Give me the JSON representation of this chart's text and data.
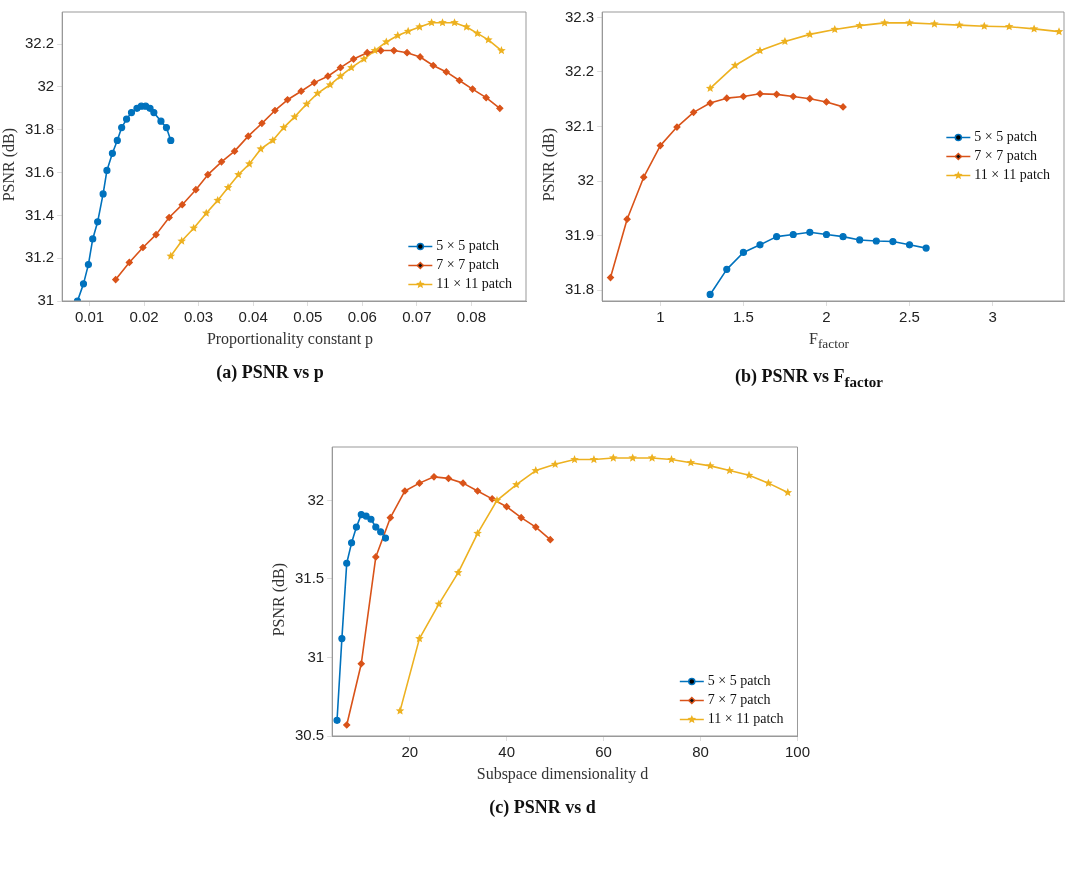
{
  "chart_data": [
    {
      "type": "line",
      "title": "(a) PSNR vs p",
      "xlabel": "Proportionality constant p",
      "ylabel": "PSNR (dB)",
      "xlim": [
        0.005,
        0.09
      ],
      "ylim": [
        31,
        32.35
      ],
      "xticks": [
        0.01,
        0.02,
        0.03,
        0.04,
        0.05,
        0.06,
        0.07,
        0.08
      ],
      "yticks": [
        31,
        31.2,
        31.4,
        31.6,
        31.8,
        32,
        32.2
      ],
      "legend": "bottom right",
      "series": [
        {
          "name": "5 × 5 patch",
          "color": "#0072bd",
          "marker": "circle",
          "x": [
            0.0078,
            0.0089,
            0.0098,
            0.0106,
            0.0115,
            0.0125,
            0.0132,
            0.0142,
            0.0151,
            0.0159,
            0.0168,
            0.0177,
            0.0187,
            0.0195,
            0.0203,
            0.0211,
            0.0218,
            0.0231,
            0.0241,
            0.0249
          ],
          "values": [
            31.0,
            31.08,
            31.17,
            31.29,
            31.37,
            31.5,
            31.61,
            31.69,
            31.75,
            31.81,
            31.85,
            31.88,
            31.9,
            31.91,
            31.91,
            31.9,
            31.88,
            31.84,
            31.81,
            31.75
          ]
        },
        {
          "name": "7 × 7 patch",
          "color": "#d95319",
          "marker": "diamond",
          "x": [
            0.0148,
            0.0173,
            0.0198,
            0.0222,
            0.0246,
            0.027,
            0.0295,
            0.0317,
            0.0342,
            0.0366,
            0.0391,
            0.0416,
            0.044,
            0.0463,
            0.0488,
            0.0512,
            0.0537,
            0.056,
            0.0584,
            0.0609,
            0.0634,
            0.0658,
            0.0682,
            0.0706,
            0.073,
            0.0754,
            0.0778,
            0.0802,
            0.0827,
            0.0852
          ],
          "values": [
            31.1,
            31.18,
            31.25,
            31.31,
            31.39,
            31.45,
            31.52,
            31.59,
            31.65,
            31.7,
            31.77,
            31.83,
            31.89,
            31.94,
            31.98,
            32.02,
            32.05,
            32.09,
            32.13,
            32.16,
            32.17,
            32.17,
            32.16,
            32.14,
            32.1,
            32.07,
            32.03,
            31.99,
            31.95,
            31.9
          ]
        },
        {
          "name": "11 × 11 patch",
          "color": "#edb120",
          "marker": "star",
          "x": [
            0.0249,
            0.0269,
            0.0291,
            0.0314,
            0.0335,
            0.0354,
            0.0373,
            0.0393,
            0.0414,
            0.0436,
            0.0456,
            0.0476,
            0.0498,
            0.0518,
            0.0541,
            0.056,
            0.058,
            0.0603,
            0.0623,
            0.0644,
            0.0665,
            0.0684,
            0.0705,
            0.0727,
            0.0747,
            0.0769,
            0.0791,
            0.0811,
            0.0831,
            0.0855
          ],
          "values": [
            31.21,
            31.28,
            31.34,
            31.41,
            31.47,
            31.53,
            31.59,
            31.64,
            31.71,
            31.75,
            31.81,
            31.86,
            31.92,
            31.97,
            32.01,
            32.05,
            32.09,
            32.13,
            32.17,
            32.21,
            32.24,
            32.26,
            32.28,
            32.3,
            32.3,
            32.3,
            32.28,
            32.25,
            32.22,
            32.17
          ]
        }
      ]
    },
    {
      "type": "line",
      "title": "(b) PSNR vs F$_{factor}$",
      "xlabel": "F$_{factor}$",
      "ylabel": "PSNR (dB)",
      "xlim": [
        0.65,
        3.43
      ],
      "ylim": [
        31.78,
        32.31
      ],
      "xticks": [
        1,
        1.5,
        2,
        2.5,
        3
      ],
      "yticks": [
        31.8,
        31.9,
        32,
        32.1,
        32.2,
        32.3
      ],
      "legend": "right",
      "series": [
        {
          "name": "5 × 5 patch",
          "color": "#0072bd",
          "marker": "circle",
          "x": [
            1.3,
            1.4,
            1.5,
            1.6,
            1.7,
            1.8,
            1.9,
            2.0,
            2.1,
            2.2,
            2.3,
            2.4,
            2.5,
            2.6
          ],
          "values": [
            31.792,
            31.838,
            31.869,
            31.883,
            31.898,
            31.902,
            31.906,
            31.902,
            31.898,
            31.892,
            31.89,
            31.889,
            31.883,
            31.877
          ]
        },
        {
          "name": "7 × 7 patch",
          "color": "#d95319",
          "marker": "diamond",
          "x": [
            0.7,
            0.8,
            0.9,
            1.0,
            1.1,
            1.2,
            1.3,
            1.4,
            1.5,
            1.6,
            1.7,
            1.8,
            1.9,
            2.0,
            2.1
          ],
          "values": [
            31.823,
            31.93,
            32.007,
            32.065,
            32.099,
            32.126,
            32.143,
            32.152,
            32.155,
            32.16,
            32.159,
            32.155,
            32.151,
            32.145,
            32.136
          ]
        },
        {
          "name": "11 × 11 patch",
          "color": "#edb120",
          "marker": "star",
          "x": [
            1.3,
            1.45,
            1.6,
            1.75,
            1.9,
            2.05,
            2.2,
            2.35,
            2.5,
            2.65,
            2.8,
            2.95,
            3.1,
            3.25,
            3.4
          ],
          "values": [
            32.17,
            32.212,
            32.239,
            32.256,
            32.269,
            32.278,
            32.285,
            32.29,
            32.29,
            32.288,
            32.286,
            32.284,
            32.283,
            32.279,
            32.274
          ]
        }
      ]
    },
    {
      "type": "line",
      "title": "(c) PSNR vs d",
      "xlabel": "Subspace dimensionality d",
      "ylabel": "PSNR (dB)",
      "xlim": [
        4,
        100
      ],
      "ylim": [
        30.5,
        32.34
      ],
      "xticks": [
        20,
        40,
        60,
        80,
        100
      ],
      "yticks": [
        30.5,
        31,
        31.5,
        32
      ],
      "legend": "bottom right",
      "series": [
        {
          "name": "5 × 5 patch",
          "color": "#0072bd",
          "marker": "circle",
          "x": [
            5,
            6,
            7,
            8,
            9,
            10,
            11,
            12,
            13,
            14,
            15
          ],
          "values": [
            30.6,
            31.12,
            31.6,
            31.73,
            31.83,
            31.91,
            31.9,
            31.88,
            31.83,
            31.8,
            31.76
          ]
        },
        {
          "name": "7 × 7 patch",
          "color": "#d95319",
          "marker": "diamond",
          "x": [
            7,
            10,
            13,
            16,
            19,
            22,
            25,
            28,
            31,
            34,
            37,
            40,
            43,
            46,
            49
          ],
          "values": [
            30.57,
            30.96,
            31.64,
            31.89,
            32.06,
            32.11,
            32.15,
            32.14,
            32.11,
            32.06,
            32.01,
            31.96,
            31.89,
            31.83,
            31.75
          ]
        },
        {
          "name": "11 × 11 patch",
          "color": "#edb120",
          "marker": "star",
          "x": [
            18,
            22,
            26,
            30,
            34,
            38,
            42,
            46,
            50,
            54,
            58,
            62,
            66,
            70,
            74,
            78,
            82,
            86,
            90,
            94,
            98
          ],
          "values": [
            30.66,
            31.12,
            31.34,
            31.54,
            31.79,
            32.0,
            32.1,
            32.19,
            32.23,
            32.26,
            32.26,
            32.27,
            32.27,
            32.27,
            32.26,
            32.24,
            32.22,
            32.19,
            32.16,
            32.11,
            32.05
          ]
        }
      ]
    }
  ]
}
